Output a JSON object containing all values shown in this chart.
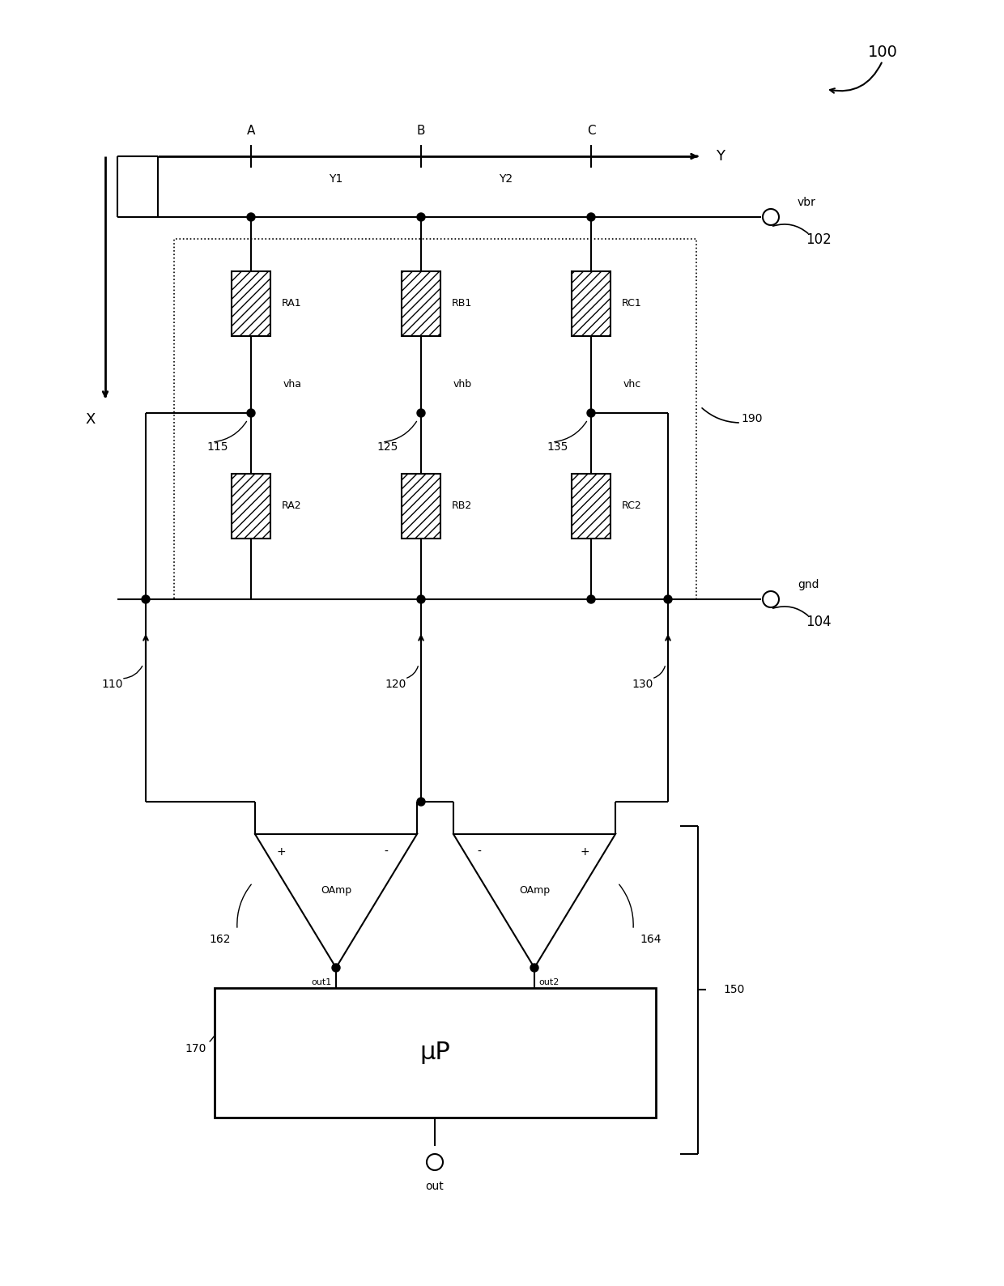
{
  "bg_color": "#ffffff",
  "fig_width": 12.4,
  "fig_height": 15.88,
  "dpi": 100,
  "labels": {
    "title_ref": "100",
    "vbr": "vbr",
    "vbr_ref": "102",
    "gnd": "gnd",
    "gnd_ref": "104",
    "ra1": "RA1",
    "rb1": "RB1",
    "rc1": "RC1",
    "ra2": "RA2",
    "rb2": "RB2",
    "rc2": "RC2",
    "vha": "vha",
    "vhb": "vhb",
    "vhc": "vhc",
    "node110": "110",
    "node115": "115",
    "node120": "120",
    "node125": "125",
    "node130": "130",
    "node135": "135",
    "node150": "150",
    "node162": "162",
    "node164": "164",
    "node170": "170",
    "node190": "190",
    "oamp": "OAmp",
    "uP": "μP",
    "out1": "out1",
    "out2": "out2",
    "out": "out",
    "axis_Y": "Y",
    "axis_X": "X",
    "axis_A": "A",
    "axis_B": "B",
    "axis_C": "C",
    "axis_Y1": "Y1",
    "axis_Y2": "Y2"
  }
}
